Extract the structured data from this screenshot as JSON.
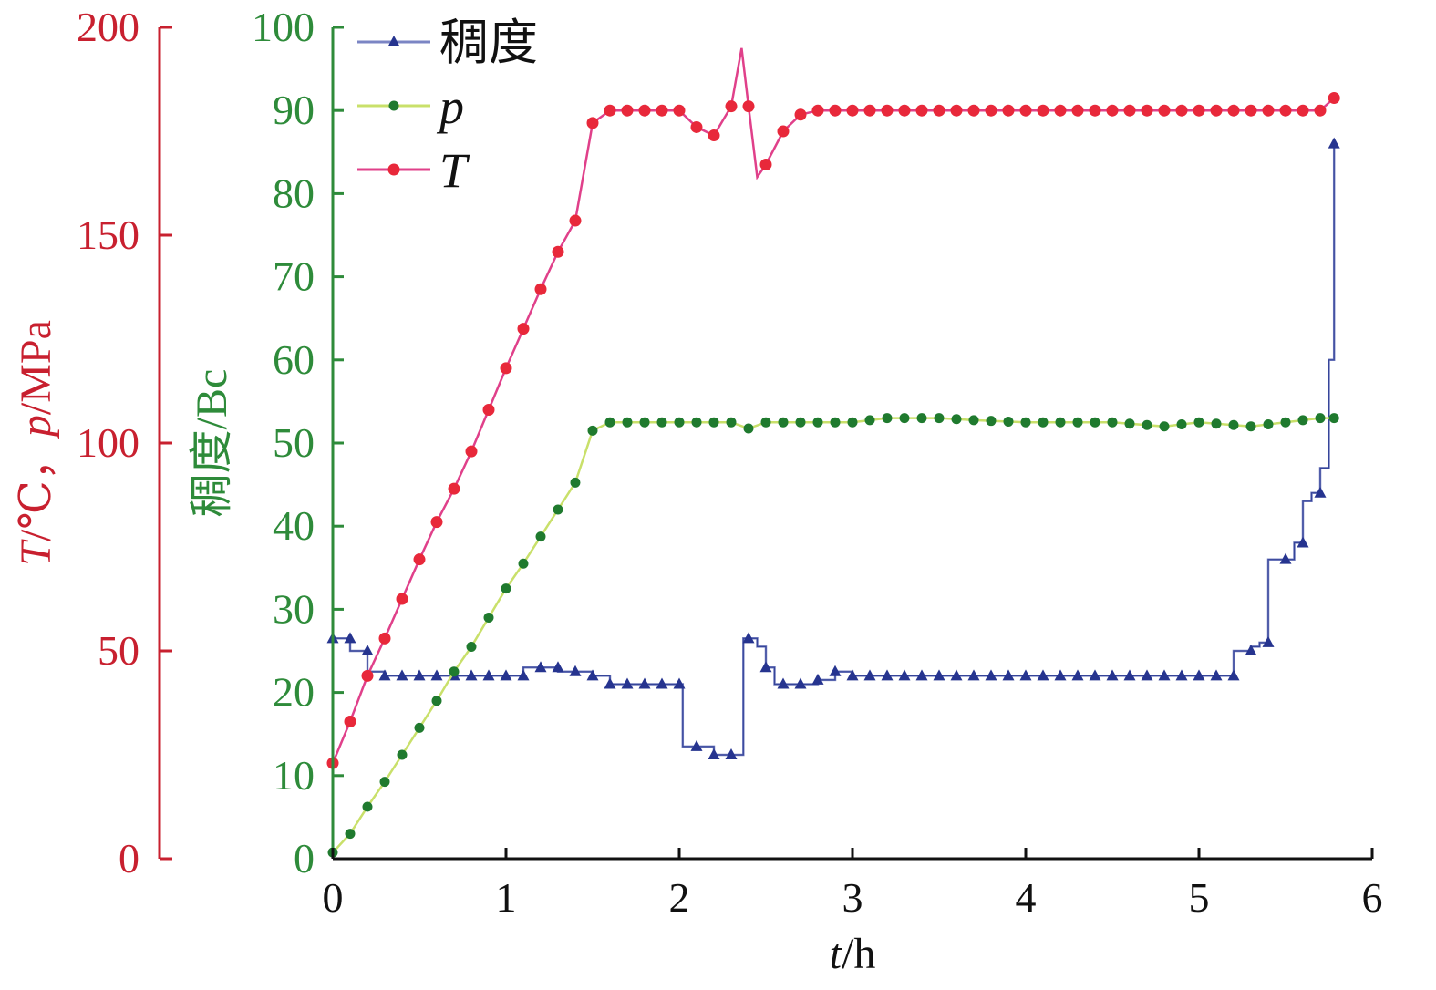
{
  "chart_data": {
    "type": "line",
    "xlabel_var": "t",
    "xlabel_unit": "/h",
    "y_left_outer": {
      "label_parts": [
        {
          "text": "T",
          "italic": true
        },
        {
          "text": "/℃，",
          "italic": false
        },
        {
          "text": "p",
          "italic": true
        },
        {
          "text": "/MPa",
          "italic": false
        }
      ],
      "ylim": [
        0,
        200
      ],
      "ticks": [
        "0",
        "50",
        "100",
        "150",
        "200"
      ],
      "color": "#c8202f"
    },
    "y_left_inner": {
      "label": "稠度/Bc",
      "ylim": [
        0,
        100
      ],
      "ticks": [
        "0",
        "10",
        "20",
        "30",
        "40",
        "50",
        "60",
        "70",
        "80",
        "90",
        "100"
      ],
      "color": "#2e8b3a"
    },
    "xlim": [
      0,
      6
    ],
    "x_ticks": [
      "0",
      "1",
      "2",
      "3",
      "4",
      "5",
      "6"
    ],
    "legend_position": "top-left",
    "series": [
      {
        "name": "稠度",
        "italic": false,
        "axis": "inner",
        "line_color": "#7b85c4",
        "marker_color": "#26348f",
        "marker": "triangle",
        "step": true,
        "points": [
          [
            0,
            26.5
          ],
          [
            0.1,
            25
          ],
          [
            0.2,
            22.5
          ],
          [
            0.3,
            22
          ],
          [
            0.5,
            22
          ],
          [
            0.7,
            22
          ],
          [
            0.9,
            22
          ],
          [
            1.0,
            22
          ],
          [
            1.1,
            23
          ],
          [
            1.2,
            23
          ],
          [
            1.3,
            22.5
          ],
          [
            1.5,
            22
          ],
          [
            1.6,
            21
          ],
          [
            2.0,
            21
          ],
          [
            2.02,
            13.5
          ],
          [
            2.15,
            13.5
          ],
          [
            2.2,
            12.5
          ],
          [
            2.35,
            12.5
          ],
          [
            2.37,
            26.5
          ],
          [
            2.45,
            25.5
          ],
          [
            2.5,
            23
          ],
          [
            2.55,
            21
          ],
          [
            2.7,
            21
          ],
          [
            2.8,
            21.5
          ],
          [
            2.9,
            22.5
          ],
          [
            3.0,
            22
          ],
          [
            3.5,
            22
          ],
          [
            4.0,
            22
          ],
          [
            4.5,
            22
          ],
          [
            5.0,
            22
          ],
          [
            5.15,
            22
          ],
          [
            5.2,
            25
          ],
          [
            5.3,
            25.5
          ],
          [
            5.35,
            26
          ],
          [
            5.4,
            36
          ],
          [
            5.55,
            38
          ],
          [
            5.6,
            43
          ],
          [
            5.65,
            44
          ],
          [
            5.7,
            47
          ],
          [
            5.75,
            60
          ],
          [
            5.78,
            86
          ]
        ]
      },
      {
        "name": "p",
        "italic": true,
        "axis": "outer",
        "line_color": "#c9e06a",
        "marker_color": "#1f7a2e",
        "marker": "circle",
        "step": false,
        "points": [
          [
            0,
            1.5
          ],
          [
            0.1,
            6
          ],
          [
            0.2,
            12.5
          ],
          [
            0.3,
            18.5
          ],
          [
            0.4,
            25
          ],
          [
            0.5,
            31.5
          ],
          [
            0.6,
            38
          ],
          [
            0.7,
            45
          ],
          [
            0.8,
            51
          ],
          [
            0.9,
            58
          ],
          [
            1.0,
            65
          ],
          [
            1.1,
            71
          ],
          [
            1.2,
            77.5
          ],
          [
            1.3,
            84
          ],
          [
            1.4,
            90.5
          ],
          [
            1.5,
            103
          ],
          [
            1.6,
            105
          ],
          [
            2.0,
            105
          ],
          [
            2.3,
            105
          ],
          [
            2.4,
            103.5
          ],
          [
            2.5,
            105
          ],
          [
            3.0,
            105
          ],
          [
            3.2,
            106
          ],
          [
            3.5,
            106
          ],
          [
            3.7,
            105.5
          ],
          [
            4.0,
            105
          ],
          [
            4.5,
            105
          ],
          [
            4.8,
            104
          ],
          [
            5.0,
            105
          ],
          [
            5.3,
            104
          ],
          [
            5.5,
            105
          ],
          [
            5.7,
            106
          ],
          [
            5.78,
            106
          ]
        ]
      },
      {
        "name": "T",
        "italic": true,
        "axis": "outer",
        "line_color": "#e0408a",
        "marker_color": "#e8283a",
        "marker": "diamond",
        "step": false,
        "points": [
          [
            0,
            23
          ],
          [
            0.1,
            33
          ],
          [
            0.2,
            44
          ],
          [
            0.3,
            53
          ],
          [
            0.4,
            62.5
          ],
          [
            0.5,
            72
          ],
          [
            0.6,
            81
          ],
          [
            0.7,
            89
          ],
          [
            0.8,
            98
          ],
          [
            0.9,
            108
          ],
          [
            1.0,
            118
          ],
          [
            1.1,
            127.5
          ],
          [
            1.2,
            137
          ],
          [
            1.3,
            146
          ],
          [
            1.4,
            153.5
          ],
          [
            1.5,
            177
          ],
          [
            1.6,
            180
          ],
          [
            2.0,
            180
          ],
          [
            2.1,
            176
          ],
          [
            2.2,
            174
          ],
          [
            2.3,
            181
          ],
          [
            2.36,
            195
          ],
          [
            2.4,
            181
          ],
          [
            2.45,
            164
          ],
          [
            2.5,
            167
          ],
          [
            2.6,
            175
          ],
          [
            2.7,
            179
          ],
          [
            2.8,
            180
          ],
          [
            3.0,
            180
          ],
          [
            4.0,
            180
          ],
          [
            5.0,
            180
          ],
          [
            5.5,
            180
          ],
          [
            5.7,
            180
          ],
          [
            5.78,
            183
          ]
        ]
      }
    ]
  }
}
